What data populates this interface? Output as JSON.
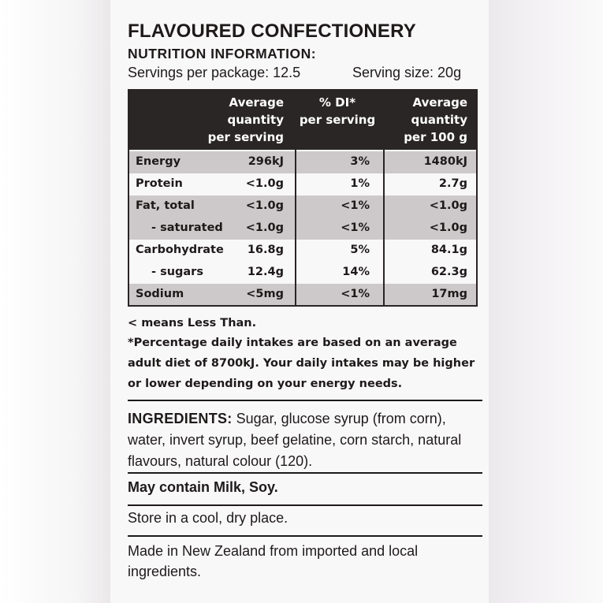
{
  "label": {
    "title": "FLAVOURED CONFECTIONERY",
    "subtitle": "NUTRITION INFORMATION:",
    "servings_per_package": "Servings per package: 12.5",
    "serving_size": "Serving size: 20g"
  },
  "nutrition_table": {
    "headers": {
      "avg_per_serving": [
        "Average",
        "quantity",
        "per serving"
      ],
      "di_per_serving": [
        "% DI*",
        "per serving"
      ],
      "avg_per_100g": [
        "Average",
        "quantity",
        "per 100 g"
      ]
    },
    "rows": [
      {
        "name": "Energy",
        "avg": "296kJ",
        "di": "3%",
        "per100": "1480kJ"
      },
      {
        "name": "Protein",
        "avg": "<1.0g",
        "di": "1%",
        "per100": "2.7g"
      },
      {
        "name": "Fat, total",
        "avg": "<1.0g",
        "di": "<1%",
        "per100": "<1.0g"
      },
      {
        "name": "- saturated",
        "avg": "<1.0g",
        "di": "<1%",
        "per100": "<1.0g"
      },
      {
        "name": "Carbohydrate",
        "avg": "16.8g",
        "di": "5%",
        "per100": "84.1g"
      },
      {
        "name": "- sugars",
        "avg": "12.4g",
        "di": "14%",
        "per100": "62.3g"
      },
      {
        "name": "Sodium",
        "avg": "<5mg",
        "di": "<1%",
        "per100": "17mg"
      }
    ]
  },
  "footnotes": {
    "less_than": "< means Less Than.",
    "daily_intake": [
      "*Percentage daily intakes are based on an average",
      "adult diet of 8700kJ. Your daily intakes may be higher",
      "or lower depending on your energy needs."
    ]
  },
  "ingredients": {
    "label": "INGREDIENTS:",
    "text": " Sugar, glucose syrup (from corn), water, invert syrup, beef gelatine, corn starch, natural flavours, natural colour (120)."
  },
  "allergens": "May contain Milk, Soy.",
  "storage": "Store in a cool, dry place.",
  "origin": "Made in New Zealand from imported and local ingredients."
}
